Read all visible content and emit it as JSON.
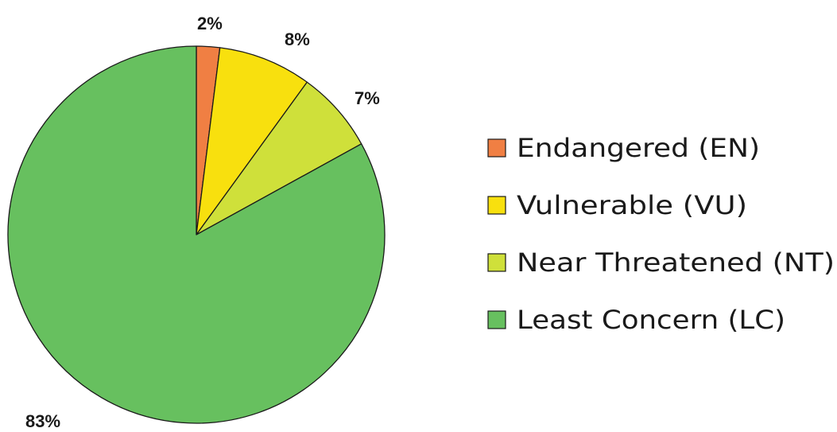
{
  "chart_data": {
    "type": "pie",
    "title": "",
    "slices": [
      {
        "label": "Endangered (EN)",
        "value": 2,
        "display": "2%",
        "color": "#f07f43"
      },
      {
        "label": "Vulnerable (VU)",
        "value": 8,
        "display": "8%",
        "color": "#f8e00e"
      },
      {
        "label": "Near Threatened (NT)",
        "value": 7,
        "display": "7%",
        "color": "#cfe03a"
      },
      {
        "label": "Least Concern (LC)",
        "value": 83,
        "display": "83%",
        "color": "#67c05f"
      }
    ],
    "start_angle": "12 o'clock",
    "direction": "clockwise",
    "legend_position": "right"
  }
}
